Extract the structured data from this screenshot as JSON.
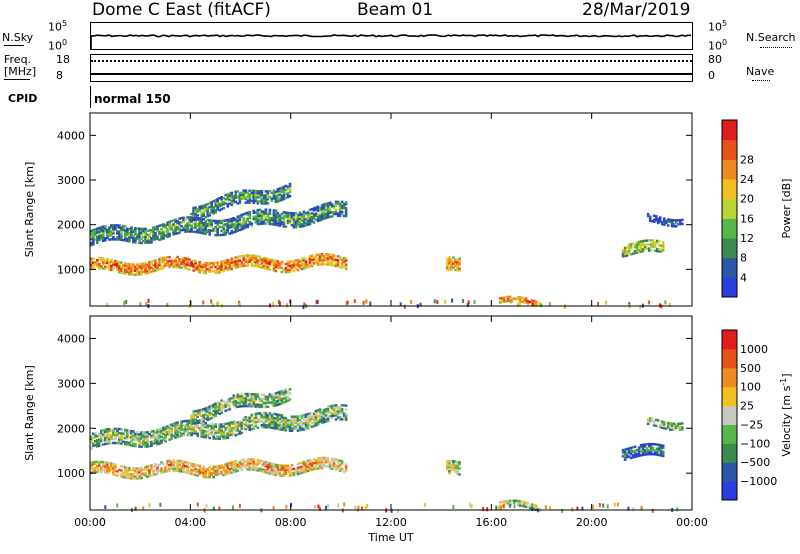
{
  "header": {
    "station": "Dome C East (fitACF)",
    "beam": "Beam 01",
    "date": "28/Mar/2019"
  },
  "strips": {
    "nsky_label": "N.Sky",
    "nsky_top": "10^5",
    "nsky_bottom": "10^0",
    "nsearch_label": "N.Search",
    "nsearch_top": "10^5",
    "nsearch_bottom": "10^0",
    "freq_label": "Freq.",
    "freq_unit": "[MHz]",
    "freq_top": "18",
    "freq_bottom": "8",
    "nave_label": "Nave",
    "nave_top": "80",
    "nave_bottom": "0",
    "cpid_label": "CPID",
    "cpid_value": "normal 150"
  },
  "chart_data": [
    {
      "type": "heatmap",
      "panel": "power",
      "xlabel": "Time UT",
      "ylabel": "Slant Range [km]",
      "xlim": [
        0,
        24
      ],
      "ylim": [
        180,
        4500
      ],
      "yticks": [
        "1000",
        "2000",
        "3000",
        "4000"
      ],
      "colorbar_label": "Power [dB]",
      "colorbar_ticks": [
        "4",
        "8",
        "12",
        "16",
        "20",
        "24",
        "28"
      ],
      "colorbar_colors": [
        "#2a3ee0",
        "#2d55a8",
        "#3d8a4f",
        "#57b84a",
        "#b8d435",
        "#f0c020",
        "#f08a20",
        "#e8501c",
        "#e01c1c"
      ],
      "echo_regions": [
        {
          "t": [
            0.0,
            10.2
          ],
          "r_center": [
            1700,
            2300
          ],
          "width": 350,
          "level": 0.35
        },
        {
          "t": [
            0.0,
            10.2
          ],
          "r_center": [
            1050,
            1150
          ],
          "width": 250,
          "level": 0.85
        },
        {
          "t": [
            4.0,
            8.0
          ],
          "r_center": [
            2300,
            2800
          ],
          "width": 300,
          "level": 0.35
        },
        {
          "t": [
            14.2,
            14.7
          ],
          "r_center": [
            1050,
            1050
          ],
          "width": 300,
          "level": 0.8
        },
        {
          "t": [
            16.3,
            17.8
          ],
          "r_center": [
            260,
            260
          ],
          "width": 120,
          "level": 0.85
        },
        {
          "t": [
            21.2,
            22.8
          ],
          "r_center": [
            1450,
            1450
          ],
          "width": 250,
          "level": 0.55
        },
        {
          "t": [
            22.2,
            23.6
          ],
          "r_center": [
            2100,
            2100
          ],
          "width": 150,
          "level": 0.1
        }
      ]
    },
    {
      "type": "heatmap",
      "panel": "velocity",
      "xlabel": "Time UT",
      "ylabel": "Slant Range [km]",
      "xlim": [
        0,
        24
      ],
      "ylim": [
        180,
        4500
      ],
      "yticks": [
        "1000",
        "2000",
        "3000",
        "4000"
      ],
      "xticks": [
        "00:00",
        "04:00",
        "08:00",
        "12:00",
        "16:00",
        "20:00",
        "00:00"
      ],
      "colorbar_label": "Velocity [m s^-1]",
      "colorbar_ticks": [
        "1000",
        "500",
        "100",
        "25",
        "−25",
        "−100",
        "−500",
        "−1000"
      ],
      "colorbar_colors": [
        "#2a3ee0",
        "#2d55a8",
        "#3d8a4f",
        "#57b84a",
        "#c8c8c0",
        "#f0c020",
        "#f08a20",
        "#e8501c",
        "#e01c1c"
      ],
      "echo_regions": [
        {
          "t": [
            0.0,
            10.2
          ],
          "r_center": [
            1700,
            2300
          ],
          "width": 350,
          "level": 0.5
        },
        {
          "t": [
            0.0,
            10.2
          ],
          "r_center": [
            1050,
            1150
          ],
          "width": 250,
          "level": 0.75
        },
        {
          "t": [
            4.0,
            8.0
          ],
          "r_center": [
            2300,
            2800
          ],
          "width": 300,
          "level": 0.5
        },
        {
          "t": [
            14.2,
            14.7
          ],
          "r_center": [
            1050,
            1050
          ],
          "width": 300,
          "level": 0.6
        },
        {
          "t": [
            16.3,
            17.8
          ],
          "r_center": [
            260,
            260
          ],
          "width": 120,
          "level": 0.6
        },
        {
          "t": [
            21.2,
            22.8
          ],
          "r_center": [
            1450,
            1450
          ],
          "width": 250,
          "level": 0.25
        },
        {
          "t": [
            22.2,
            23.6
          ],
          "r_center": [
            2100,
            2100
          ],
          "width": 150,
          "level": 0.5
        }
      ]
    }
  ]
}
